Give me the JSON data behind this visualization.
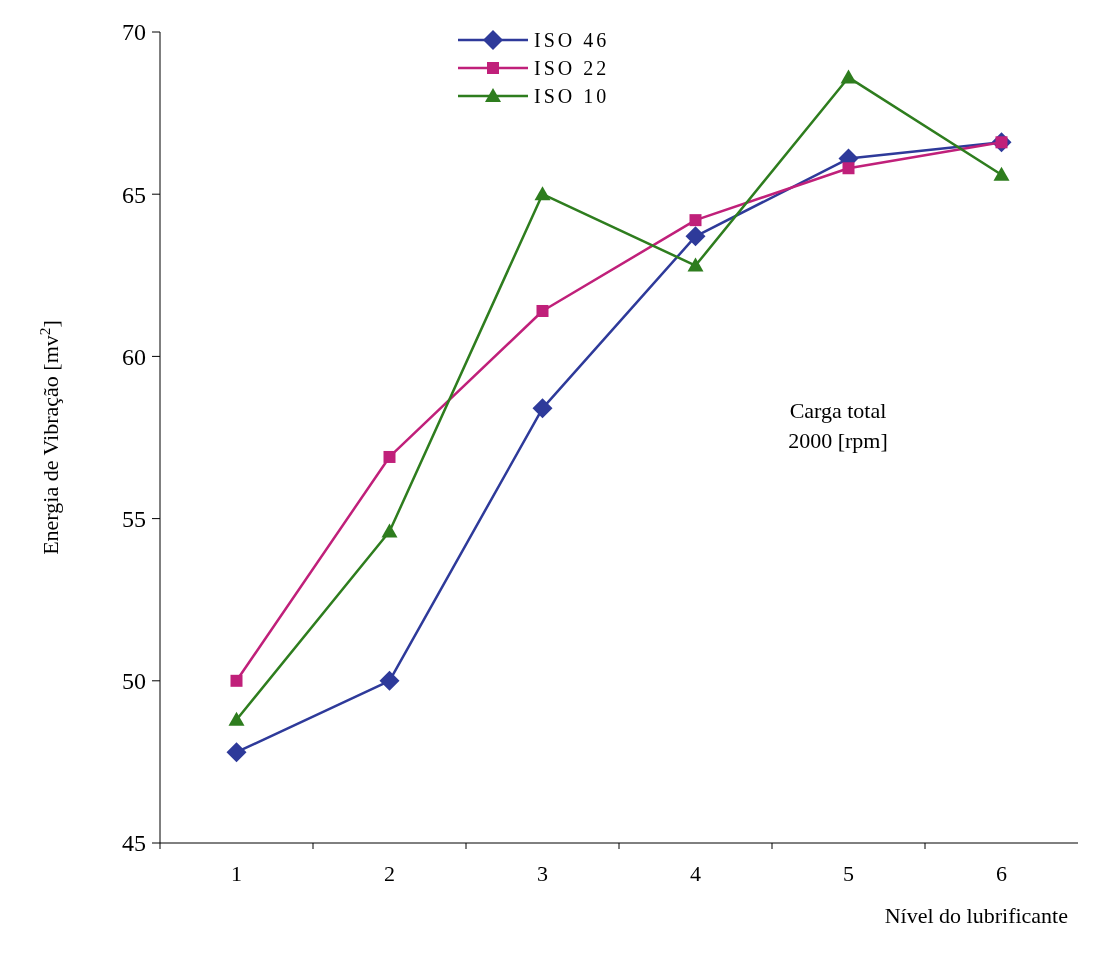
{
  "chart_data": {
    "type": "line",
    "xlabel": "Nível do lubrificante",
    "ylabel": "Energia de Vibração [mv$^{2}$]",
    "categories": [
      "1",
      "2",
      "3",
      "4",
      "5",
      "6"
    ],
    "series": [
      {
        "name": "ISO 46",
        "color": "#2e3a9a",
        "marker": "diamond",
        "values": [
          47.8,
          50.0,
          58.4,
          63.7,
          66.1,
          66.6
        ]
      },
      {
        "name": "ISO 22",
        "color": "#c0207a",
        "marker": "square",
        "values": [
          50.0,
          56.9,
          61.4,
          64.2,
          65.8,
          66.6
        ]
      },
      {
        "name": "ISO 10",
        "color": "#2e7d1e",
        "marker": "triangle",
        "values": [
          48.8,
          54.6,
          65.0,
          62.8,
          68.6,
          65.6
        ]
      }
    ],
    "ylim": [
      45,
      70
    ],
    "yticks": [
      45,
      50,
      55,
      60,
      65,
      70
    ],
    "grid": false,
    "legend": "top",
    "line_style": "solid",
    "annotations": [
      "Carga total\n2000 [rpm]"
    ]
  }
}
